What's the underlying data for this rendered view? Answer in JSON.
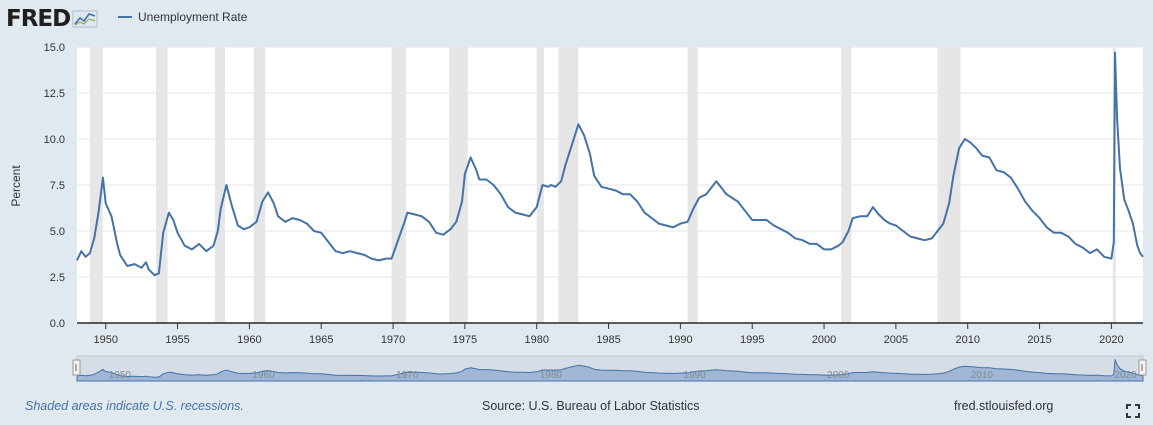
{
  "header": {
    "logo_text": "FRED",
    "legend_label": "Unemployment Rate"
  },
  "colors": {
    "line": "#4572a7",
    "recession": "#e6e6e6",
    "plot_bg": "#ffffff",
    "page_bg": "#e1e9f0",
    "navigator_fill": "#9fb6d4"
  },
  "footer": {
    "recession_note": "Shaded areas indicate U.S. recessions.",
    "source": "Source: U.S. Bureau of Labor Statistics",
    "site": "fred.stlouisfed.org"
  },
  "chart_data": {
    "type": "line",
    "title": "",
    "ylabel": "Percent",
    "xlabel": "",
    "xlim": [
      1948.0,
      2022.2
    ],
    "ylim": [
      0,
      15
    ],
    "y_ticks": [
      "0.0",
      "2.5",
      "5.0",
      "7.5",
      "10.0",
      "12.5",
      "15.0"
    ],
    "x_ticks": [
      "1950",
      "1955",
      "1960",
      "1965",
      "1970",
      "1975",
      "1980",
      "1985",
      "1990",
      "1995",
      "2000",
      "2005",
      "2010",
      "2015",
      "2020"
    ],
    "grid": true,
    "legend_position": "top-left",
    "recessions": [
      [
        1948.9,
        1949.8
      ],
      [
        1953.5,
        1954.3
      ],
      [
        1957.6,
        1958.3
      ],
      [
        1960.3,
        1961.1
      ],
      [
        1969.9,
        1970.9
      ],
      [
        1973.9,
        1975.2
      ],
      [
        1980.0,
        1980.5
      ],
      [
        1981.5,
        1982.9
      ],
      [
        1990.5,
        1991.2
      ],
      [
        2001.2,
        2001.9
      ],
      [
        2007.9,
        2009.5
      ],
      [
        2020.1,
        2020.3
      ]
    ],
    "series": [
      {
        "name": "Unemployment Rate",
        "points": [
          [
            1948.0,
            3.4
          ],
          [
            1948.3,
            3.9
          ],
          [
            1948.6,
            3.6
          ],
          [
            1948.9,
            3.8
          ],
          [
            1949.2,
            4.6
          ],
          [
            1949.5,
            6.0
          ],
          [
            1949.8,
            7.9
          ],
          [
            1950.0,
            6.5
          ],
          [
            1950.4,
            5.8
          ],
          [
            1950.8,
            4.3
          ],
          [
            1951.0,
            3.7
          ],
          [
            1951.5,
            3.1
          ],
          [
            1952.0,
            3.2
          ],
          [
            1952.5,
            3.0
          ],
          [
            1952.8,
            3.3
          ],
          [
            1953.0,
            2.9
          ],
          [
            1953.4,
            2.6
          ],
          [
            1953.7,
            2.7
          ],
          [
            1954.0,
            4.9
          ],
          [
            1954.4,
            6.0
          ],
          [
            1954.7,
            5.6
          ],
          [
            1955.0,
            4.9
          ],
          [
            1955.5,
            4.2
          ],
          [
            1956.0,
            4.0
          ],
          [
            1956.5,
            4.3
          ],
          [
            1957.0,
            3.9
          ],
          [
            1957.5,
            4.2
          ],
          [
            1957.8,
            5.0
          ],
          [
            1958.0,
            6.2
          ],
          [
            1958.4,
            7.5
          ],
          [
            1958.8,
            6.3
          ],
          [
            1959.2,
            5.3
          ],
          [
            1959.6,
            5.1
          ],
          [
            1960.0,
            5.2
          ],
          [
            1960.5,
            5.5
          ],
          [
            1960.9,
            6.6
          ],
          [
            1961.3,
            7.1
          ],
          [
            1961.7,
            6.5
          ],
          [
            1962.0,
            5.8
          ],
          [
            1962.5,
            5.5
          ],
          [
            1963.0,
            5.7
          ],
          [
            1963.5,
            5.6
          ],
          [
            1964.0,
            5.4
          ],
          [
            1964.5,
            5.0
          ],
          [
            1965.0,
            4.9
          ],
          [
            1965.5,
            4.4
          ],
          [
            1966.0,
            3.9
          ],
          [
            1966.5,
            3.8
          ],
          [
            1967.0,
            3.9
          ],
          [
            1967.5,
            3.8
          ],
          [
            1968.0,
            3.7
          ],
          [
            1968.5,
            3.5
          ],
          [
            1969.0,
            3.4
          ],
          [
            1969.5,
            3.5
          ],
          [
            1969.9,
            3.5
          ],
          [
            1970.3,
            4.4
          ],
          [
            1970.8,
            5.5
          ],
          [
            1971.0,
            6.0
          ],
          [
            1971.5,
            5.9
          ],
          [
            1972.0,
            5.8
          ],
          [
            1972.5,
            5.5
          ],
          [
            1973.0,
            4.9
          ],
          [
            1973.5,
            4.8
          ],
          [
            1974.0,
            5.1
          ],
          [
            1974.4,
            5.5
          ],
          [
            1974.8,
            6.6
          ],
          [
            1975.0,
            8.1
          ],
          [
            1975.4,
            9.0
          ],
          [
            1975.8,
            8.3
          ],
          [
            1976.0,
            7.8
          ],
          [
            1976.5,
            7.8
          ],
          [
            1977.0,
            7.5
          ],
          [
            1977.5,
            7.0
          ],
          [
            1978.0,
            6.3
          ],
          [
            1978.5,
            6.0
          ],
          [
            1979.0,
            5.9
          ],
          [
            1979.5,
            5.8
          ],
          [
            1980.0,
            6.3
          ],
          [
            1980.4,
            7.5
          ],
          [
            1980.8,
            7.4
          ],
          [
            1981.0,
            7.5
          ],
          [
            1981.3,
            7.4
          ],
          [
            1981.7,
            7.7
          ],
          [
            1982.0,
            8.6
          ],
          [
            1982.5,
            9.8
          ],
          [
            1982.9,
            10.8
          ],
          [
            1983.3,
            10.2
          ],
          [
            1983.7,
            9.2
          ],
          [
            1984.0,
            8.0
          ],
          [
            1984.5,
            7.4
          ],
          [
            1985.0,
            7.3
          ],
          [
            1985.5,
            7.2
          ],
          [
            1986.0,
            7.0
          ],
          [
            1986.5,
            7.0
          ],
          [
            1987.0,
            6.6
          ],
          [
            1987.5,
            6.0
          ],
          [
            1988.0,
            5.7
          ],
          [
            1988.5,
            5.4
          ],
          [
            1989.0,
            5.3
          ],
          [
            1989.5,
            5.2
          ],
          [
            1990.0,
            5.4
          ],
          [
            1990.5,
            5.5
          ],
          [
            1990.9,
            6.2
          ],
          [
            1991.3,
            6.8
          ],
          [
            1991.8,
            7.0
          ],
          [
            1992.2,
            7.4
          ],
          [
            1992.5,
            7.7
          ],
          [
            1992.8,
            7.4
          ],
          [
            1993.2,
            7.0
          ],
          [
            1993.6,
            6.8
          ],
          [
            1994.0,
            6.6
          ],
          [
            1994.5,
            6.1
          ],
          [
            1995.0,
            5.6
          ],
          [
            1995.5,
            5.6
          ],
          [
            1996.0,
            5.6
          ],
          [
            1996.5,
            5.3
          ],
          [
            1997.0,
            5.1
          ],
          [
            1997.5,
            4.9
          ],
          [
            1998.0,
            4.6
          ],
          [
            1998.5,
            4.5
          ],
          [
            1999.0,
            4.3
          ],
          [
            1999.5,
            4.3
          ],
          [
            2000.0,
            4.0
          ],
          [
            2000.5,
            4.0
          ],
          [
            2001.0,
            4.2
          ],
          [
            2001.3,
            4.4
          ],
          [
            2001.7,
            5.0
          ],
          [
            2002.0,
            5.7
          ],
          [
            2002.5,
            5.8
          ],
          [
            2003.0,
            5.8
          ],
          [
            2003.4,
            6.3
          ],
          [
            2003.8,
            5.9
          ],
          [
            2004.2,
            5.6
          ],
          [
            2004.6,
            5.4
          ],
          [
            2005.0,
            5.3
          ],
          [
            2005.5,
            5.0
          ],
          [
            2006.0,
            4.7
          ],
          [
            2006.5,
            4.6
          ],
          [
            2007.0,
            4.5
          ],
          [
            2007.5,
            4.6
          ],
          [
            2007.9,
            5.0
          ],
          [
            2008.3,
            5.4
          ],
          [
            2008.7,
            6.5
          ],
          [
            2009.0,
            8.0
          ],
          [
            2009.4,
            9.5
          ],
          [
            2009.8,
            10.0
          ],
          [
            2010.2,
            9.8
          ],
          [
            2010.6,
            9.5
          ],
          [
            2011.0,
            9.1
          ],
          [
            2011.5,
            9.0
          ],
          [
            2012.0,
            8.3
          ],
          [
            2012.5,
            8.2
          ],
          [
            2013.0,
            7.9
          ],
          [
            2013.5,
            7.3
          ],
          [
            2014.0,
            6.6
          ],
          [
            2014.5,
            6.1
          ],
          [
            2015.0,
            5.7
          ],
          [
            2015.5,
            5.2
          ],
          [
            2016.0,
            4.9
          ],
          [
            2016.5,
            4.9
          ],
          [
            2017.0,
            4.7
          ],
          [
            2017.5,
            4.3
          ],
          [
            2018.0,
            4.1
          ],
          [
            2018.5,
            3.8
          ],
          [
            2019.0,
            4.0
          ],
          [
            2019.5,
            3.6
          ],
          [
            2020.0,
            3.5
          ],
          [
            2020.17,
            4.4
          ],
          [
            2020.25,
            14.7
          ],
          [
            2020.4,
            11.1
          ],
          [
            2020.6,
            8.4
          ],
          [
            2020.9,
            6.7
          ],
          [
            2021.2,
            6.1
          ],
          [
            2021.5,
            5.4
          ],
          [
            2021.8,
            4.2
          ],
          [
            2022.0,
            3.8
          ],
          [
            2022.2,
            3.6
          ]
        ]
      }
    ],
    "navigator_ticks": [
      "1950",
      "1960",
      "1970",
      "1980",
      "1990",
      "2000",
      "2010",
      "2020"
    ]
  }
}
